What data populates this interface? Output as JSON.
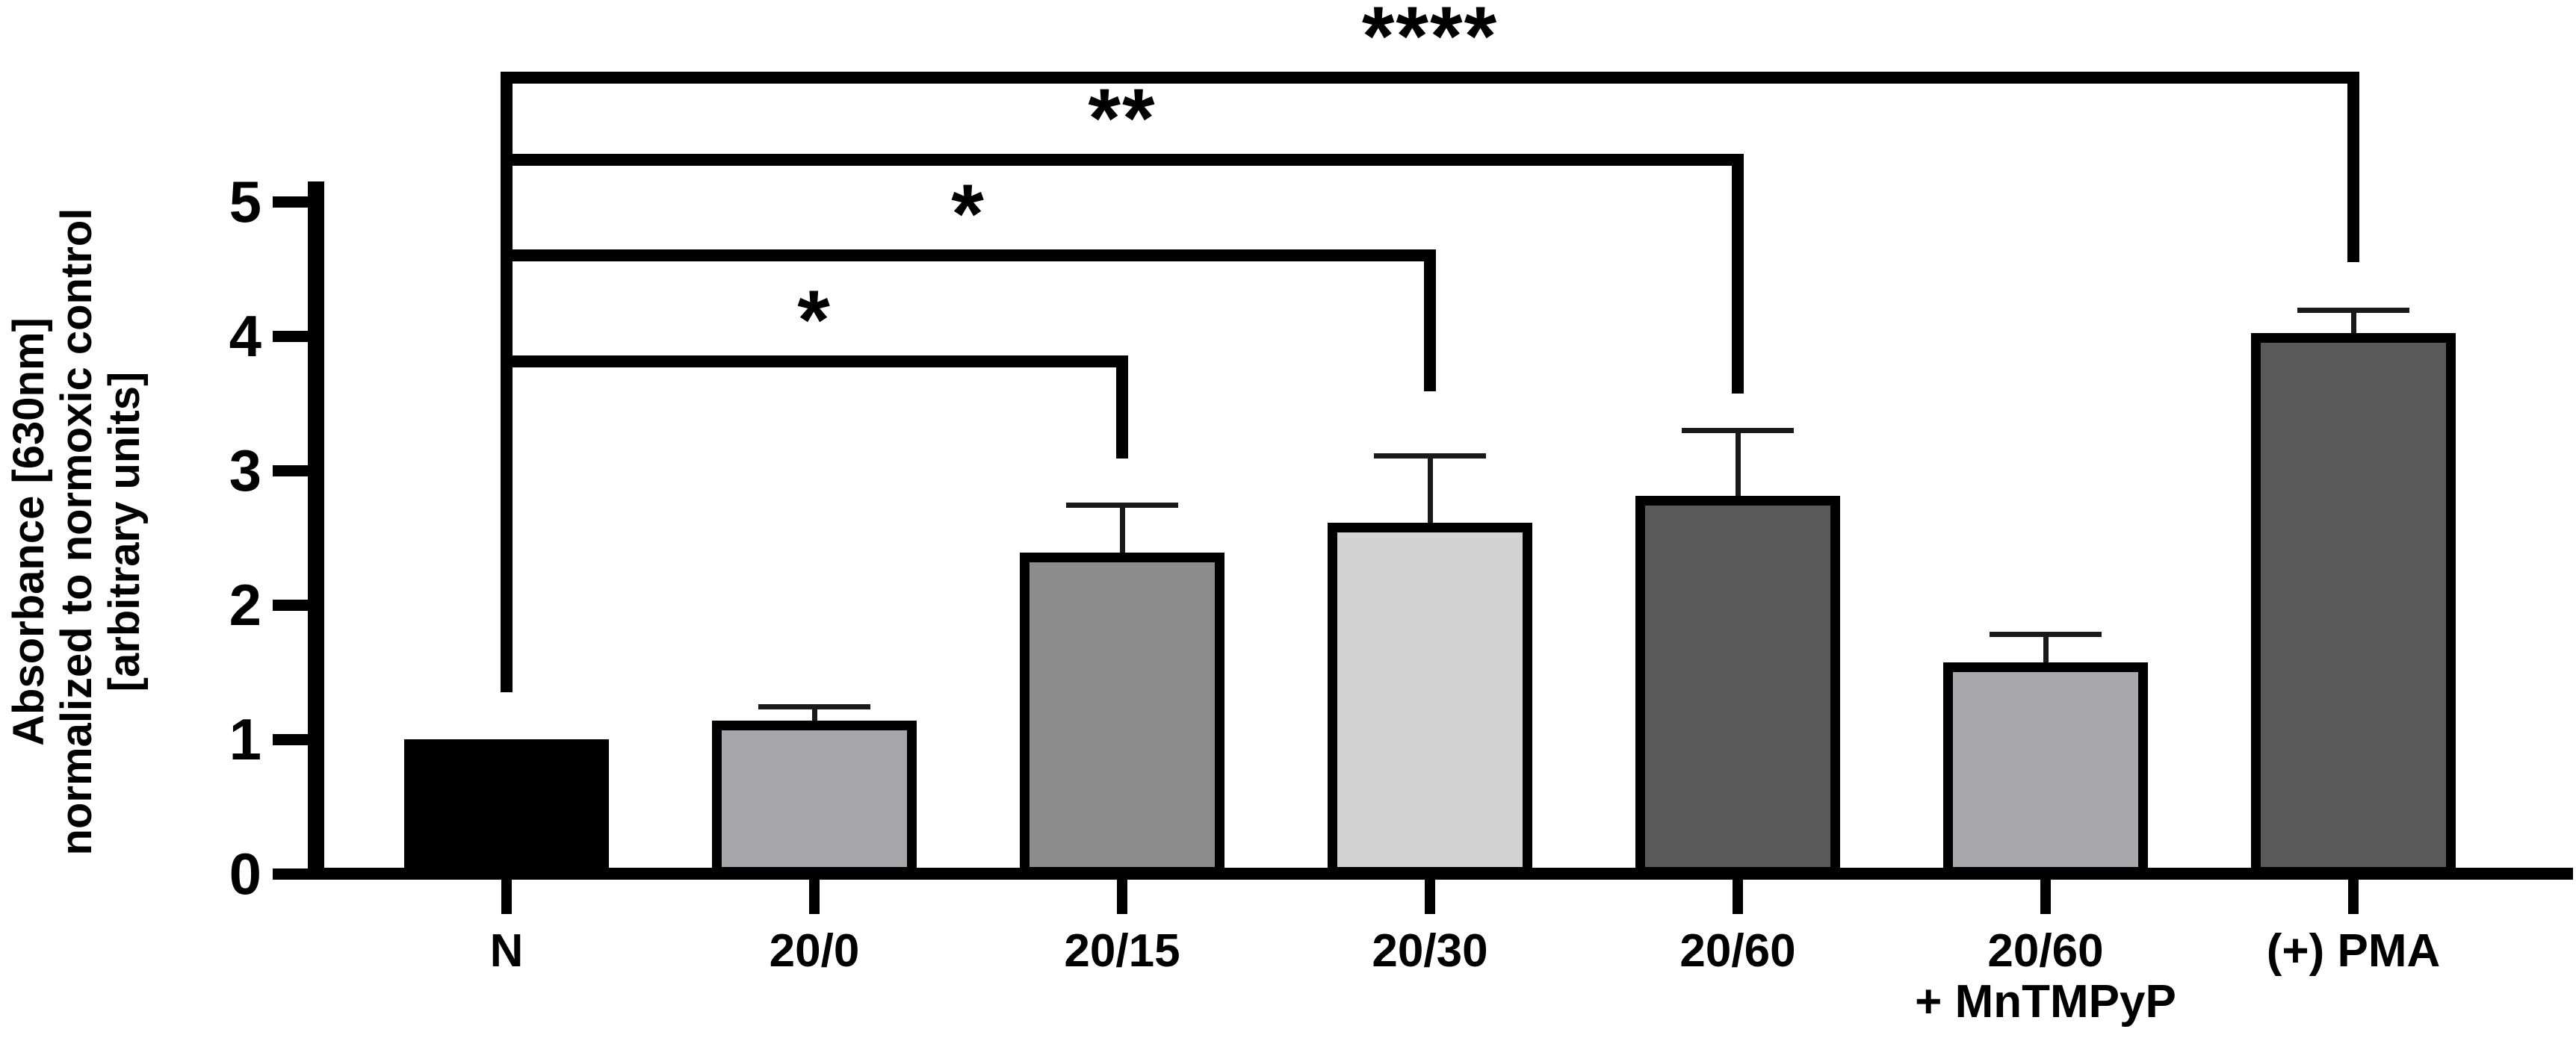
{
  "chart_data": {
    "type": "bar",
    "title": "",
    "ylabel_lines": [
      "Absorbance [630nm]",
      "normalized to normoxic control",
      "[arbitrary units]"
    ],
    "xlabel": "",
    "ylim": [
      0,
      5
    ],
    "yticks": [
      "0",
      "1",
      "2",
      "3",
      "4",
      "5"
    ],
    "grid": false,
    "legend": null,
    "categories": [
      {
        "lines": [
          "N"
        ]
      },
      {
        "lines": [
          "20/0"
        ]
      },
      {
        "lines": [
          "20/15"
        ]
      },
      {
        "lines": [
          "20/30"
        ]
      },
      {
        "lines": [
          "20/60"
        ]
      },
      {
        "lines": [
          "20/60",
          "+ MnTMPyP"
        ]
      },
      {
        "lines": [
          "(+) PMA"
        ]
      }
    ],
    "values": [
      1.0,
      1.14,
      2.39,
      2.61,
      2.81,
      1.57,
      4.02
    ],
    "sem": [
      0,
      0.1,
      0.35,
      0.5,
      0.49,
      0.21,
      0.17
    ],
    "bar_colors": [
      "#000000",
      "#a7a7ab",
      "#8c8c8c",
      "#d3d3d3",
      "#595959",
      "#a9a9ad",
      "#595959"
    ],
    "axis_color": "#000000",
    "error_color": "#1a1a1a",
    "background": "#ffffff",
    "significance": [
      {
        "from": 0,
        "to": 2,
        "label": "*",
        "line_v": 3.81,
        "drop_v": 3.09,
        "left_drop_v": 1.35
      },
      {
        "from": 0,
        "to": 3,
        "label": "*",
        "line_v": 4.6,
        "drop_v": 3.59,
        "left_drop_v": 1.35
      },
      {
        "from": 0,
        "to": 4,
        "label": "**",
        "line_v": 5.31,
        "drop_v": 3.57,
        "left_drop_v": 1.35
      },
      {
        "from": 0,
        "to": 6,
        "label": "****",
        "line_v": 5.92,
        "drop_v": 4.55,
        "left_drop_v": 1.35
      }
    ]
  }
}
